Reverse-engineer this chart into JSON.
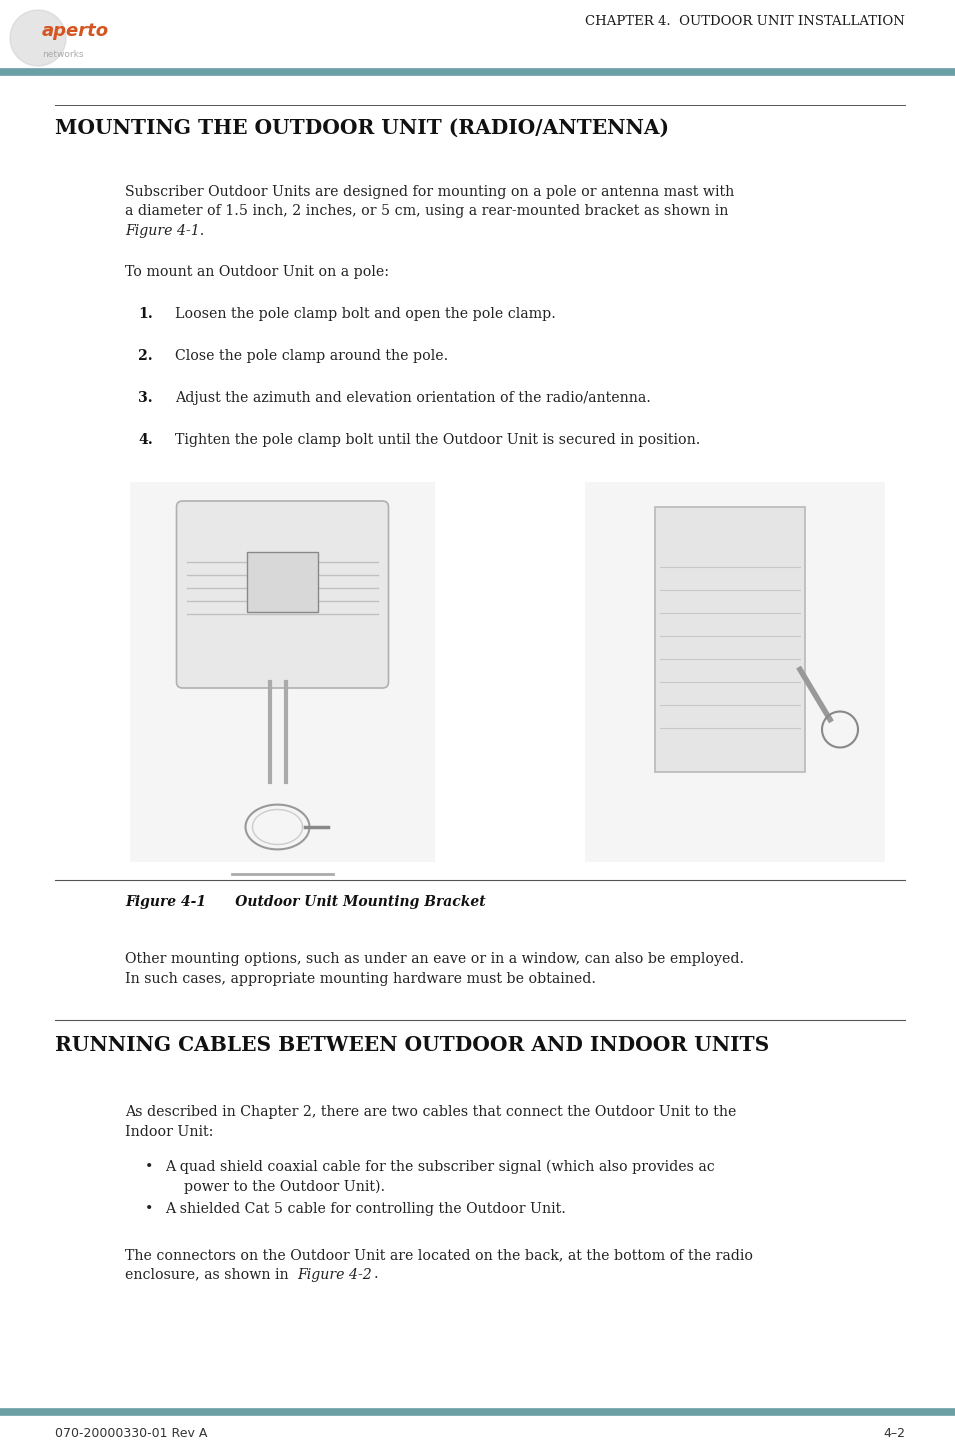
{
  "page_width": 9.55,
  "page_height": 14.44,
  "bg_color": "#ffffff",
  "teal_color": "#6a9fa5",
  "logo_orange": "#d45520",
  "logo_gray": "#999999",
  "header_text": "CHAPTER 4.  OUTDOOR UNIT INSTALLATION",
  "section1_title": "MOUNTING THE OUTDOOR UNIT (RADIO/ANTENNA)",
  "para1_line1": "Subscriber Outdoor Units are designed for mounting on a pole or antenna mast with",
  "para1_line2": "a diameter of 1.5 inch, 2 inches, or 5 cm, using a rear-mounted bracket as shown in",
  "para1_line3_normal": "Figure 4-1",
  "para1_line3_italic": "Figure 4-1",
  "para2": "To mount an Outdoor Unit on a pole:",
  "steps": [
    {
      "num": "1.",
      "text": "Loosen the pole clamp bolt and open the pole clamp."
    },
    {
      "num": "2.",
      "text": "Close the pole clamp around the pole."
    },
    {
      "num": "3.",
      "text": "Adjust the azimuth and elevation orientation of the radio/antenna."
    },
    {
      "num": "4.",
      "text": "Tighten the pole clamp bolt until the Outdoor Unit is secured in position."
    }
  ],
  "fig_caption_bold": "Figure 4-1",
  "fig_caption_rest": "      Outdoor Unit Mounting Bracket",
  "para3_line1": "Other mounting options, such as under an eave or in a window, can also be employed.",
  "para3_line2": "In such cases, appropriate mounting hardware must be obtained.",
  "section2_title": "RUNNING CABLES BETWEEN OUTDOOR AND INDOOR UNITS",
  "para4_line1": "As described in Chapter 2, there are two cables that connect the Outdoor Unit to the",
  "para4_line2": "Indoor Unit:",
  "bullet1_line1": "A quad shield coaxial cable for the subscriber signal (which also provides ac",
  "bullet1_line2": "power to the Outdoor Unit).",
  "bullet2": "A shielded Cat 5 cable for controlling the Outdoor Unit.",
  "para5_line1": "The connectors on the Outdoor Unit are located on the back, at the bottom of the radio",
  "para5_line2_normal": "enclosure, as shown in ",
  "para5_line2_italic": "Figure 4-2",
  "para5_line2_end": ".",
  "footer_left": "070-20000330-01 Rev A",
  "footer_right": "4–2",
  "body_fontsize": 10.2,
  "title_fontsize": 14.5,
  "header_fontsize": 9.5,
  "footer_fontsize": 9.0,
  "caption_fontsize": 10.0
}
